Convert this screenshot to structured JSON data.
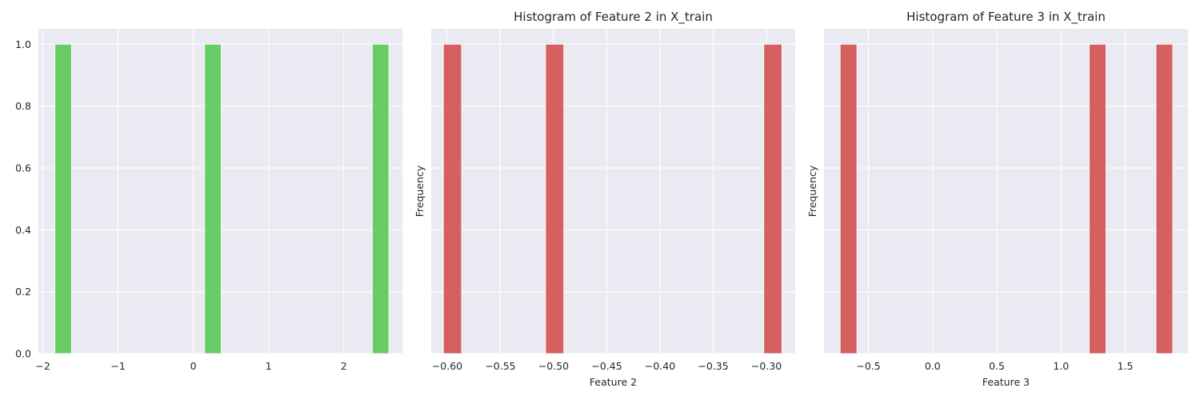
{
  "chart_data": [
    {
      "type": "bar",
      "title": "",
      "xlabel": "",
      "ylabel": "",
      "xlim": [
        -2.06,
        2.78
      ],
      "ylim": [
        0,
        1.05
      ],
      "xticks": [
        -2,
        -1,
        0,
        1,
        2
      ],
      "xtick_labels": [
        "−2",
        "−1",
        "0",
        "1",
        "2"
      ],
      "yticks": [
        0.0,
        0.2,
        0.4,
        0.6,
        0.8,
        1.0
      ],
      "ytick_labels": [
        "0.0",
        "0.2",
        "0.4",
        "0.6",
        "0.8",
        "1.0"
      ],
      "show_yticklabels": true,
      "grid": true,
      "color": "#6acc64",
      "bars": [
        {
          "x0": -1.84,
          "x1": -1.62,
          "value": 1
        },
        {
          "x0": 0.15,
          "x1": 0.37,
          "value": 1
        },
        {
          "x0": 2.38,
          "x1": 2.6,
          "value": 1
        }
      ]
    },
    {
      "type": "bar",
      "title": "Histogram of Feature 2 in X_train",
      "xlabel": "Feature 2",
      "ylabel": "Frequency",
      "xlim": [
        -0.615,
        -0.273
      ],
      "ylim": [
        0,
        1.05
      ],
      "xticks": [
        -0.6,
        -0.55,
        -0.5,
        -0.45,
        -0.4,
        -0.35,
        -0.3
      ],
      "xtick_labels": [
        "−0.60",
        "−0.55",
        "−0.50",
        "−0.45",
        "−0.40",
        "−0.35",
        "−0.30"
      ],
      "yticks": [
        0.0,
        0.2,
        0.4,
        0.6,
        0.8,
        1.0
      ],
      "ytick_labels": [
        "0.0",
        "0.2",
        "0.4",
        "0.6",
        "0.8",
        "1.0"
      ],
      "show_yticklabels": false,
      "grid": true,
      "color": "#d65f5f",
      "bars": [
        {
          "x0": -0.6035,
          "x1": -0.5865,
          "value": 1
        },
        {
          "x0": -0.5075,
          "x1": -0.4905,
          "value": 1
        },
        {
          "x0": -0.3025,
          "x1": -0.2855,
          "value": 1
        }
      ]
    },
    {
      "type": "bar",
      "title": "Histogram of Feature 3 in X_train",
      "xlabel": "Feature 3",
      "ylabel": "Frequency",
      "xlim": [
        -0.846,
        1.989
      ],
      "ylim": [
        0,
        1.05
      ],
      "xticks": [
        -0.5,
        0.0,
        0.5,
        1.0,
        1.5
      ],
      "xtick_labels": [
        "−0.5",
        "0.0",
        "0.5",
        "1.0",
        "1.5"
      ],
      "yticks": [
        0.0,
        0.2,
        0.4,
        0.6,
        0.8,
        1.0
      ],
      "ytick_labels": [
        "0.0",
        "0.2",
        "0.4",
        "0.6",
        "0.8",
        "1.0"
      ],
      "show_yticklabels": false,
      "grid": true,
      "color": "#d65f5f",
      "bars": [
        {
          "x0": -0.72,
          "x1": -0.59,
          "value": 1
        },
        {
          "x0": 1.22,
          "x1": 1.35,
          "value": 1
        },
        {
          "x0": 1.74,
          "x1": 1.87,
          "value": 1
        }
      ]
    }
  ]
}
